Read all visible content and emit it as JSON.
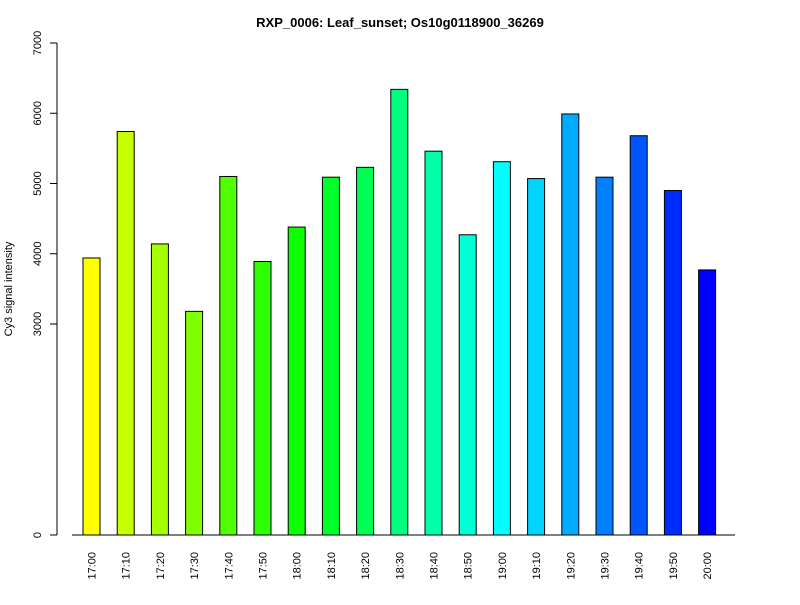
{
  "chart_data": {
    "type": "bar",
    "title": "RXP_0006: Leaf_sunset; Os10g0118900_36269",
    "xlabel": "",
    "ylabel": "Cy3 signal intensity",
    "y_ticks": [
      "0",
      "3000",
      "4000",
      "5000",
      "6000",
      "7000"
    ],
    "y_tick_values": [
      0,
      3000,
      4000,
      5000,
      6000,
      7000
    ],
    "y_scale_note": "axis broken: 0 at baseline, linear from 3000 to 7000",
    "categories": [
      "17:00",
      "17:10",
      "17:20",
      "17:30",
      "17:40",
      "17:50",
      "18:00",
      "18:10",
      "18:20",
      "18:30",
      "18:40",
      "18:50",
      "19:00",
      "19:10",
      "19:20",
      "19:30",
      "19:40",
      "19:50",
      "20:00"
    ],
    "values": [
      3940,
      5740,
      4140,
      3180,
      5100,
      3890,
      4380,
      5090,
      5230,
      6340,
      5460,
      4270,
      5310,
      5070,
      5990,
      5090,
      5680,
      4900,
      3770
    ],
    "colors": [
      "#FFFF00",
      "#C6FF00",
      "#A6FF00",
      "#80FF00",
      "#52FF00",
      "#2FFF00",
      "#0DFF00",
      "#00FF2B",
      "#00FF55",
      "#00FF80",
      "#00FFAA",
      "#00FFD4",
      "#00FFFF",
      "#00D4FF",
      "#00AAFF",
      "#0080FF",
      "#0055FF",
      "#002BFF",
      "#0000FF"
    ],
    "grid": false,
    "legend": "none"
  }
}
